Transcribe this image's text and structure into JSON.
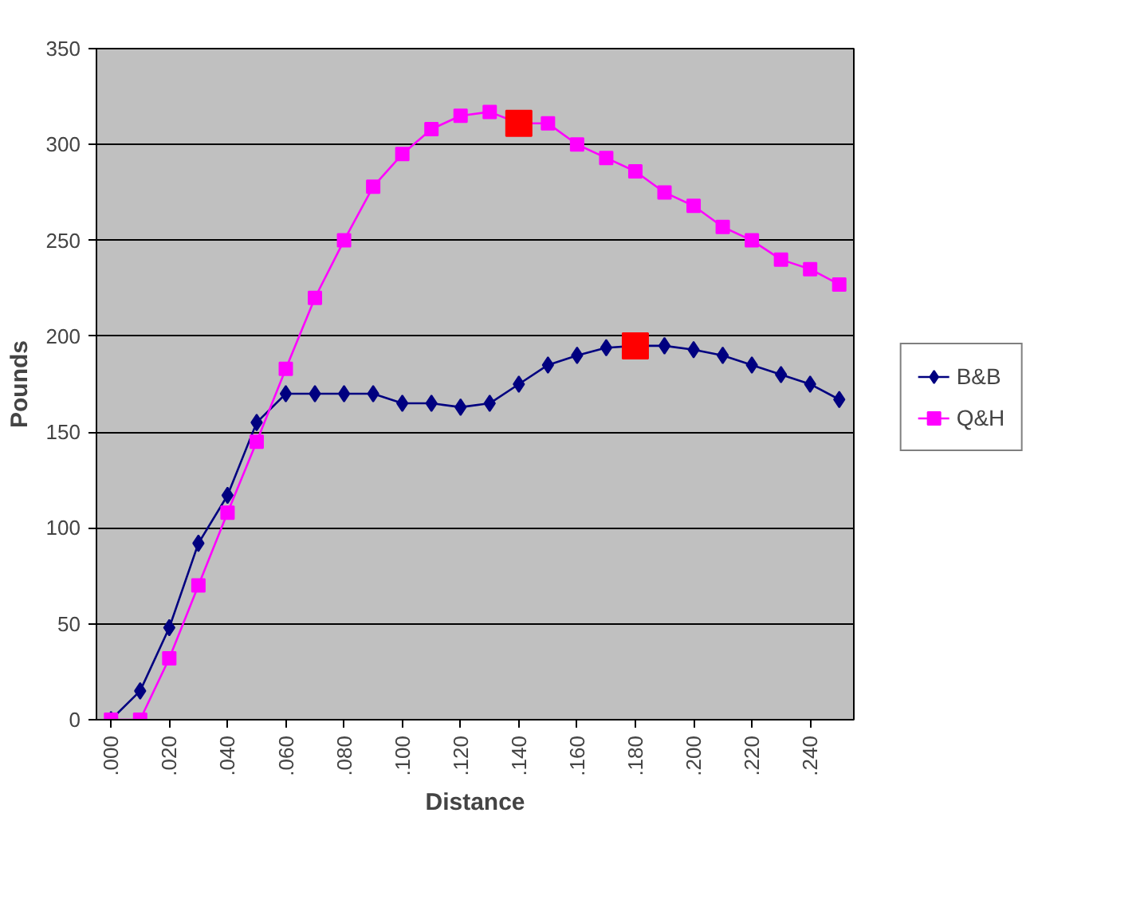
{
  "chart_data": {
    "type": "line",
    "xlabel": "Distance",
    "ylabel": "Pounds",
    "x": [
      0,
      0.01,
      0.02,
      0.03,
      0.04,
      0.05,
      0.06,
      0.07,
      0.08,
      0.09,
      0.1,
      0.11,
      0.12,
      0.13,
      0.14,
      0.15,
      0.16,
      0.17,
      0.18,
      0.19,
      0.2,
      0.21,
      0.22,
      0.23,
      0.24,
      0.25
    ],
    "series": [
      {
        "name": "B&B",
        "color": "#000080",
        "marker": "diamond",
        "values": [
          0,
          15,
          48,
          92,
          117,
          155,
          170,
          170,
          170,
          170,
          165,
          165,
          163,
          165,
          175,
          185,
          190,
          194,
          195,
          195,
          193,
          190,
          185,
          180,
          175,
          167
        ]
      },
      {
        "name": "Q&H",
        "color": "#ff00ff",
        "marker": "square",
        "values": [
          0,
          0,
          32,
          70,
          108,
          145,
          183,
          220,
          250,
          278,
          295,
          308,
          315,
          317,
          311,
          311,
          300,
          293,
          286,
          275,
          268,
          257,
          250,
          240,
          235,
          227
        ]
      },
      {
        "type": "scatter",
        "color": "#ff0000",
        "marker": "square",
        "x": [
          0.14,
          0.18
        ],
        "values": [
          311,
          195
        ]
      }
    ],
    "xlim": [
      -0.005,
      0.255
    ],
    "xticks": [
      {
        "value": 0,
        "label": ".000"
      },
      {
        "value": 0.02,
        "label": ".020"
      },
      {
        "value": 0.04,
        "label": ".040"
      },
      {
        "value": 0.06,
        "label": ".060"
      },
      {
        "value": 0.08,
        "label": ".080"
      },
      {
        "value": 0.1,
        "label": ".100"
      },
      {
        "value": 0.12,
        "label": ".120"
      },
      {
        "value": 0.14,
        "label": ".140"
      },
      {
        "value": 0.16,
        "label": ".160"
      },
      {
        "value": 0.18,
        "label": ".180"
      },
      {
        "value": 0.2,
        "label": ".200"
      },
      {
        "value": 0.22,
        "label": ".220"
      },
      {
        "value": 0.24,
        "label": ".240"
      }
    ],
    "ylim": [
      0,
      350
    ],
    "yticks": [
      0,
      50,
      100,
      150,
      200,
      250,
      300,
      350
    ],
    "grid": "y",
    "legend": "right"
  }
}
